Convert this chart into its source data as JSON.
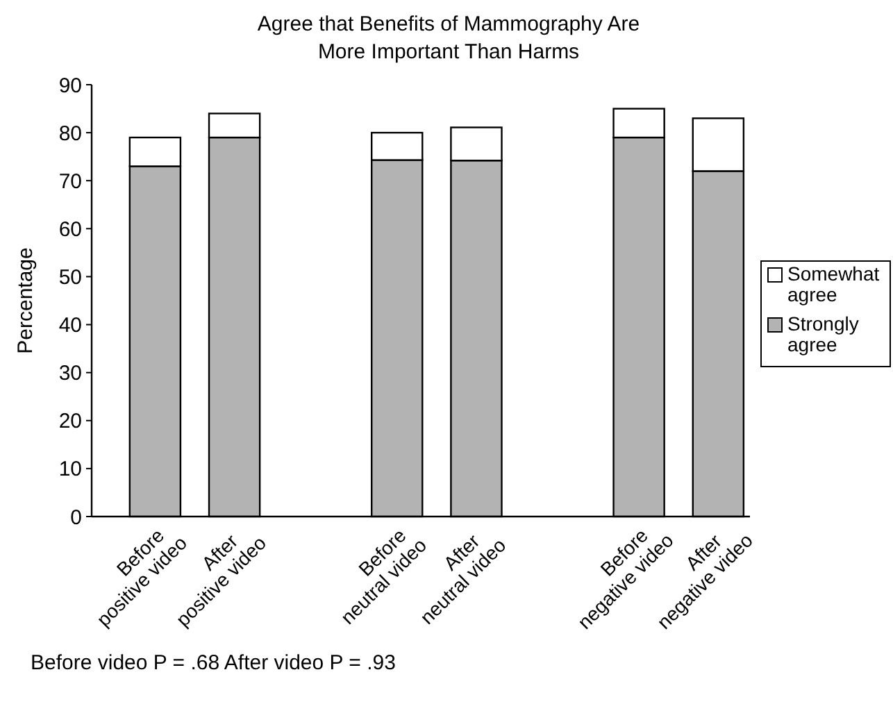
{
  "chart_data": {
    "type": "bar",
    "title": "Agree that Benefits of Mammography Are More Important Than Harms",
    "ylabel": "Percentage",
    "categories": [
      "Before positive video",
      "After positive video",
      "Before neutral video",
      "After neutral video",
      "Before negative video",
      "After negative video"
    ],
    "stacked": true,
    "series": [
      {
        "name": "Strongly agree",
        "color": "#b3b3b3",
        "values": [
          73,
          79,
          74.3,
          74.2,
          79,
          72
        ]
      },
      {
        "name": "Somewhat agree",
        "color": "#ffffff",
        "values": [
          6,
          5,
          5.7,
          6.9,
          6,
          11
        ]
      }
    ],
    "ylim": [
      0,
      90
    ],
    "yticks": [
      0,
      10,
      20,
      30,
      40,
      50,
      60,
      70,
      80,
      90
    ],
    "grid": false,
    "legend": "right",
    "annotations": [
      "Before video P = .68 After video P = .93"
    ]
  }
}
